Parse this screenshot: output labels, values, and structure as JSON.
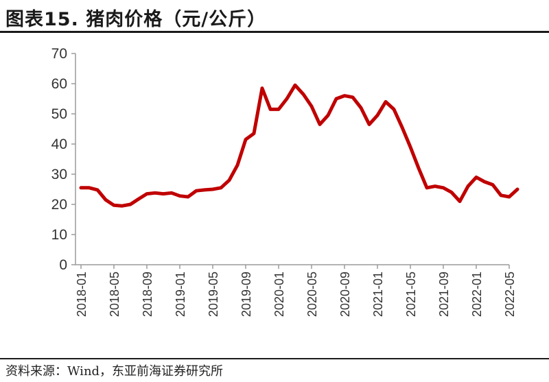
{
  "header": {
    "title": "图表15.  猪肉价格（元/公斤）"
  },
  "footer": {
    "source": "资料来源：Wind，东亚前海证券研究所"
  },
  "chart_data": {
    "type": "line",
    "title": "猪肉价格（元/公斤）",
    "xlabel": "",
    "ylabel": "",
    "ylim": [
      0,
      70
    ],
    "yticks": [
      0,
      10,
      20,
      30,
      40,
      50,
      60,
      70
    ],
    "xtick_labels": [
      "2018-01",
      "2018-05",
      "2018-09",
      "2019-01",
      "2019-05",
      "2019-09",
      "2020-01",
      "2020-05",
      "2020-09",
      "2021-01",
      "2021-05",
      "2021-09",
      "2022-01",
      "2022-05"
    ],
    "x_range": [
      "2018-01",
      "2022-05"
    ],
    "grid": false,
    "legend": "none",
    "line_color": "#c00000",
    "series": [
      {
        "values": [
          [
            "2018-01",
            25.5
          ],
          [
            "2018-02",
            25.5
          ],
          [
            "2018-03",
            24.8
          ],
          [
            "2018-04",
            21.5
          ],
          [
            "2018-05",
            19.7
          ],
          [
            "2018-06",
            19.5
          ],
          [
            "2018-07",
            20.0
          ],
          [
            "2018-08",
            21.8
          ],
          [
            "2018-09",
            23.5
          ],
          [
            "2018-10",
            23.8
          ],
          [
            "2018-11",
            23.5
          ],
          [
            "2018-12",
            23.8
          ],
          [
            "2019-01",
            22.8
          ],
          [
            "2019-02",
            22.5
          ],
          [
            "2019-03",
            24.5
          ],
          [
            "2019-04",
            24.8
          ],
          [
            "2019-05",
            25.0
          ],
          [
            "2019-06",
            25.5
          ],
          [
            "2019-07",
            28.0
          ],
          [
            "2019-08",
            33.0
          ],
          [
            "2019-09",
            41.5
          ],
          [
            "2019-10",
            43.5
          ],
          [
            "2019-11",
            58.5
          ],
          [
            "2019-12",
            51.5
          ],
          [
            "2020-01",
            51.5
          ],
          [
            "2020-02",
            55.0
          ],
          [
            "2020-03",
            59.5
          ],
          [
            "2020-04",
            56.5
          ],
          [
            "2020-05",
            52.5
          ],
          [
            "2020-06",
            46.5
          ],
          [
            "2020-07",
            49.5
          ],
          [
            "2020-08",
            55.0
          ],
          [
            "2020-09",
            56.0
          ],
          [
            "2020-10",
            55.5
          ],
          [
            "2020-11",
            52.0
          ],
          [
            "2020-12",
            46.5
          ],
          [
            "2021-01",
            49.5
          ],
          [
            "2021-02",
            54.0
          ],
          [
            "2021-03",
            51.5
          ],
          [
            "2021-04",
            45.5
          ],
          [
            "2021-05",
            39.0
          ],
          [
            "2021-06",
            32.0
          ],
          [
            "2021-07",
            25.5
          ],
          [
            "2021-08",
            26.0
          ],
          [
            "2021-09",
            25.5
          ],
          [
            "2021-10",
            24.0
          ],
          [
            "2021-11",
            21.0
          ],
          [
            "2021-12",
            26.0
          ],
          [
            "2022-01",
            29.0
          ],
          [
            "2022-02",
            27.5
          ],
          [
            "2022-03",
            26.5
          ],
          [
            "2022-04",
            23.0
          ],
          [
            "2022-05",
            22.5
          ],
          [
            "2022-06",
            25.0
          ]
        ]
      }
    ]
  }
}
